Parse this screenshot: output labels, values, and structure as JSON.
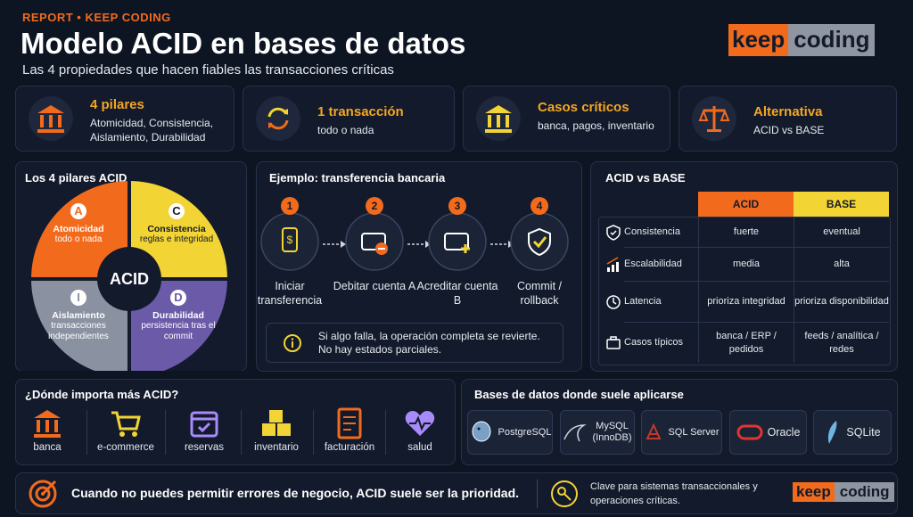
{
  "header": {
    "kicker": "REPORT • KEEP CODING",
    "title": "Modelo ACID en bases de datos",
    "subtitle": "Las 4 propiedades que hacen fiables las transacciones críticas",
    "logo": {
      "left": "keep",
      "right": "coding"
    }
  },
  "highlights": [
    {
      "title": "4 pilares",
      "text": "Atomicidad, Consistencia, Aislamiento, Durabilidad"
    },
    {
      "title": "1 transacción",
      "text": "todo o nada"
    },
    {
      "title": "Casos críticos",
      "text": "banca, pagos, inventario"
    },
    {
      "title": "Alternativa",
      "text": "ACID vs BASE"
    }
  ],
  "pillars": {
    "title": "Los 4 pilares ACID",
    "center": "ACID",
    "items": [
      {
        "letter": "A",
        "name": "Atomicidad",
        "text": "todo o nada"
      },
      {
        "letter": "C",
        "name": "Consistencia",
        "text": "reglas e integridad"
      },
      {
        "letter": "I",
        "name": "Aislamiento",
        "text": "transacciones independientes"
      },
      {
        "letter": "D",
        "name": "Durabilidad",
        "text": "persistencia tras el commit"
      }
    ]
  },
  "example": {
    "title": "Ejemplo: transferencia bancaria",
    "steps": [
      {
        "number": "1",
        "label": "Iniciar transferencia"
      },
      {
        "number": "2",
        "label": "Debitar cuenta A"
      },
      {
        "number": "3",
        "label": "Acreditar cuenta B"
      },
      {
        "number": "4",
        "label": "Commit / rollback"
      }
    ],
    "note": "Si algo falla, la operación completa se revierte. No hay estados parciales."
  },
  "comparison": {
    "title": "ACID vs BASE",
    "columns": [
      "ACID",
      "BASE"
    ],
    "rows": [
      {
        "label": "Consistencia",
        "cells": [
          "fuerte",
          "eventual"
        ]
      },
      {
        "label": "Escalabilidad",
        "cells": [
          "media",
          "alta"
        ]
      },
      {
        "label": "Latencia",
        "cells": [
          "prioriza integridad",
          "prioriza disponibilidad"
        ]
      },
      {
        "label": "Casos típicos",
        "cells": [
          "banca / ERP / pedidos",
          "feeds / analítica / redes"
        ]
      }
    ]
  },
  "importance": {
    "title": "¿Dónde importa más ACID?",
    "items": [
      "banca",
      "e-commerce",
      "reservas",
      "inventario",
      "facturación",
      "salud"
    ]
  },
  "databases": {
    "title": "Bases de datos donde suele aplicarse",
    "items": [
      "PostgreSQL",
      "MySQL (InnoDB)",
      "SQL Server",
      "Oracle",
      "SQLite"
    ]
  },
  "footer": {
    "message": "Cuando no puedes permitir errores de negocio, ACID suele ser la prioridad.",
    "note": "Clave para sistemas transaccionales y operaciones críticas.",
    "logo": {
      "left": "keep",
      "right": "coding"
    }
  }
}
